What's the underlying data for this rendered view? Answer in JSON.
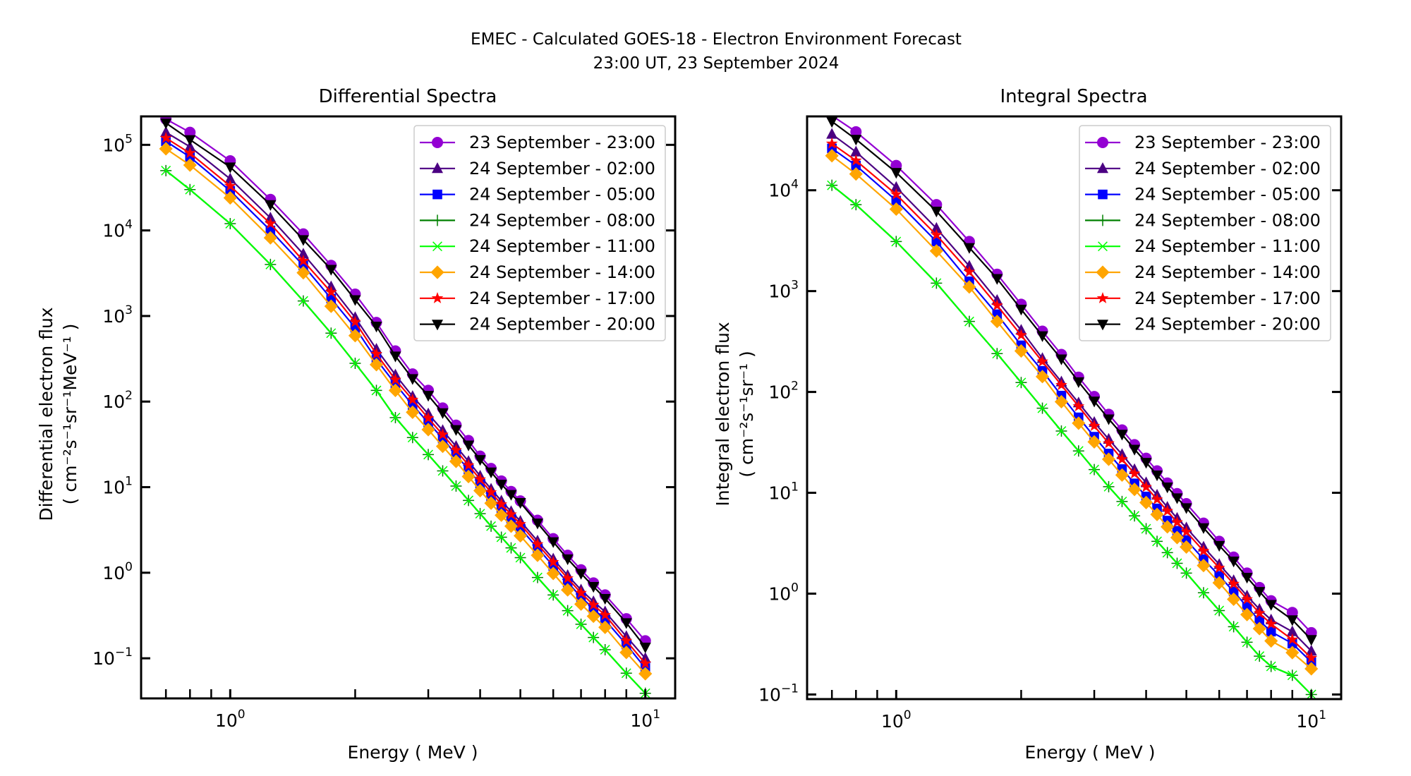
{
  "figure": {
    "title_line1": "EMEC - Calculated GOES-18 - Electron Environment Forecast",
    "title_line2": "23:00 UT, 23 September 2024"
  },
  "chart_data": [
    {
      "type": "line",
      "title": "Differential Spectra",
      "xlabel": "Energy ( MeV )",
      "ylabel_line1": "Differential electron flux",
      "ylabel_line2": "( cm⁻²s⁻¹sr⁻¹MeV⁻¹ )",
      "xscale": "log",
      "yscale": "log",
      "xlim": [
        0.61,
        11.8
      ],
      "ylim": [
        0.034,
        215000
      ],
      "xticks": [
        {
          "value": 1,
          "label": "10",
          "exp": "0"
        },
        {
          "value": 10,
          "label": "10",
          "exp": "1"
        }
      ],
      "yticks": [
        {
          "value": 0.1,
          "label": "10",
          "exp": "−1"
        },
        {
          "value": 1,
          "label": "10",
          "exp": "0"
        },
        {
          "value": 10,
          "label": "10",
          "exp": "1"
        },
        {
          "value": 100,
          "label": "10",
          "exp": "2"
        },
        {
          "value": 1000,
          "label": "10",
          "exp": "3"
        },
        {
          "value": 10000,
          "label": "10",
          "exp": "4"
        },
        {
          "value": 100000,
          "label": "10",
          "exp": "5"
        }
      ],
      "grid": false,
      "legend_position": "top-right",
      "x": [
        0.7,
        0.8,
        1.0,
        1.25,
        1.5,
        1.75,
        2.0,
        2.25,
        2.5,
        2.75,
        3.0,
        3.25,
        3.5,
        3.75,
        4.0,
        4.25,
        4.5,
        4.75,
        5.0,
        5.5,
        6.0,
        6.5,
        7.0,
        7.5,
        8.0,
        9.0,
        10.0
      ],
      "series": [
        {
          "name": "23 September - 23:00",
          "color": "#9400D3",
          "marker": "circle",
          "values": [
            200000,
            140000,
            65000,
            23000,
            9100,
            3900,
            1800,
            840,
            390,
            210,
            135,
            84,
            53,
            35,
            23,
            16.5,
            11.8,
            8.9,
            6.9,
            4.1,
            2.5,
            1.6,
            1.08,
            0.76,
            0.55,
            0.29,
            0.16
          ]
        },
        {
          "name": "24 September - 02:00",
          "color": "#4B0082",
          "marker": "triangle-up",
          "values": [
            140000,
            95000,
            40000,
            14000,
            5300,
            2200,
            960,
            410,
            205,
            115,
            72,
            46,
            30,
            20,
            13.5,
            9.5,
            6.9,
            5.2,
            4.0,
            2.35,
            1.45,
            0.93,
            0.63,
            0.46,
            0.35,
            0.18,
            0.1
          ]
        },
        {
          "name": "24 September - 05:00",
          "color": "#0000FF",
          "marker": "square",
          "values": [
            110000,
            72000,
            29000,
            10000,
            3900,
            1600,
            730,
            310,
            160,
            91,
            57,
            37,
            24,
            16,
            11,
            7.8,
            5.7,
            4.3,
            3.3,
            1.95,
            1.2,
            0.77,
            0.52,
            0.38,
            0.28,
            0.145,
            0.077
          ]
        },
        {
          "name": "24 September - 08:00",
          "color": "#008000",
          "marker": "plus",
          "values": [
            50000,
            30000,
            12000,
            4000,
            1500,
            630,
            280,
            135,
            65,
            38,
            24,
            15.5,
            10.3,
            7.0,
            4.9,
            3.5,
            2.6,
            1.95,
            1.5,
            0.88,
            0.55,
            0.36,
            0.25,
            0.175,
            0.126,
            0.067,
            0.039
          ]
        },
        {
          "name": "24 September - 11:00",
          "color": "#00FF00",
          "marker": "x",
          "values": [
            50000,
            30000,
            12000,
            4000,
            1500,
            630,
            280,
            135,
            65,
            38,
            24,
            15.5,
            10.3,
            7.0,
            4.9,
            3.5,
            2.6,
            1.95,
            1.5,
            0.88,
            0.55,
            0.36,
            0.25,
            0.175,
            0.126,
            0.067,
            0.039
          ]
        },
        {
          "name": "24 September - 14:00",
          "color": "#FFA500",
          "marker": "diamond",
          "values": [
            90000,
            58000,
            24000,
            8200,
            3200,
            1300,
            590,
            270,
            135,
            75,
            47,
            30,
            20,
            13.3,
            9.1,
            6.5,
            4.7,
            3.5,
            2.7,
            1.6,
            0.98,
            0.63,
            0.43,
            0.31,
            0.23,
            0.117,
            0.066
          ]
        },
        {
          "name": "24 September - 17:00",
          "color": "#FF0000",
          "marker": "star",
          "values": [
            120000,
            80000,
            33000,
            12000,
            4400,
            1900,
            850,
            360,
            180,
            105,
            64,
            41,
            27,
            18,
            12.3,
            8.7,
            6.3,
            4.8,
            3.7,
            2.15,
            1.33,
            0.86,
            0.58,
            0.42,
            0.32,
            0.16,
            0.087
          ]
        },
        {
          "name": "24 September - 20:00",
          "color": "#000000",
          "marker": "triangle-down",
          "values": [
            180000,
            115000,
            55000,
            20000,
            7800,
            3500,
            1550,
            760,
            340,
            185,
            118,
            74,
            47,
            31,
            21,
            15,
            10.8,
            8.2,
            6.6,
            3.8,
            2.3,
            1.45,
            0.98,
            0.69,
            0.5,
            0.26,
            0.135
          ]
        }
      ]
    },
    {
      "type": "line",
      "title": "Integral Spectra",
      "xlabel": "Energy ( MeV )",
      "ylabel_line1": "Integral electron flux",
      "ylabel_line2": "( cm⁻²s⁻¹sr⁻¹ )",
      "xscale": "log",
      "yscale": "log",
      "xlim": [
        0.61,
        11.8
      ],
      "ylim": [
        0.09,
        54000
      ],
      "xticks": [
        {
          "value": 1,
          "label": "10",
          "exp": "0"
        },
        {
          "value": 10,
          "label": "10",
          "exp": "1"
        }
      ],
      "yticks": [
        {
          "value": 0.1,
          "label": "10",
          "exp": "−1"
        },
        {
          "value": 1,
          "label": "10",
          "exp": "0"
        },
        {
          "value": 10,
          "label": "10",
          "exp": "1"
        },
        {
          "value": 100,
          "label": "10",
          "exp": "2"
        },
        {
          "value": 1000,
          "label": "10",
          "exp": "3"
        },
        {
          "value": 10000,
          "label": "10",
          "exp": "4"
        }
      ],
      "grid": false,
      "legend_position": "top-right",
      "x": [
        0.7,
        0.8,
        1.0,
        1.25,
        1.5,
        1.75,
        2.0,
        2.25,
        2.5,
        2.75,
        3.0,
        3.25,
        3.5,
        3.75,
        4.0,
        4.25,
        4.5,
        4.75,
        5.0,
        5.5,
        6.0,
        6.5,
        7.0,
        7.5,
        8.0,
        9.0,
        10.0
      ],
      "series": [
        {
          "name": "23 September - 23:00",
          "color": "#9400D3",
          "marker": "circle",
          "values": [
            55000,
            38000,
            17600,
            7200,
            3100,
            1470,
            740,
            400,
            235,
            140,
            90,
            60,
            42,
            30,
            22,
            16.5,
            12.5,
            9.8,
            7.8,
            5.0,
            3.3,
            2.3,
            1.6,
            1.15,
            0.85,
            0.65,
            0.41
          ]
        },
        {
          "name": "24 September - 02:00",
          "color": "#4B0082",
          "marker": "triangle-up",
          "values": [
            36000,
            24000,
            10700,
            4200,
            1770,
            810,
            410,
            215,
            126,
            78,
            50,
            34,
            24,
            17,
            12.6,
            9.5,
            7.2,
            5.6,
            4.5,
            2.9,
            1.95,
            1.35,
            0.95,
            0.7,
            0.55,
            0.42,
            0.27
          ]
        },
        {
          "name": "24 September - 05:00",
          "color": "#0000FF",
          "marker": "square",
          "values": [
            26000,
            17600,
            7900,
            3100,
            1250,
            590,
            290,
            162,
            92,
            56,
            36,
            24.5,
            17.2,
            12.4,
            9.2,
            7.0,
            5.3,
            4.2,
            3.4,
            2.2,
            1.5,
            1.05,
            0.74,
            0.54,
            0.42,
            0.32,
            0.21
          ]
        },
        {
          "name": "24 September - 08:00",
          "color": "#008000",
          "marker": "plus",
          "values": [
            11200,
            7200,
            3100,
            1200,
            500,
            240,
            124,
            69,
            41,
            26,
            17,
            11.5,
            8.2,
            5.9,
            4.4,
            3.3,
            2.55,
            2.0,
            1.6,
            1.02,
            0.68,
            0.47,
            0.33,
            0.24,
            0.19,
            0.155,
            0.1
          ]
        },
        {
          "name": "24 September - 11:00",
          "color": "#00FF00",
          "marker": "x",
          "values": [
            11200,
            7200,
            3100,
            1200,
            500,
            240,
            124,
            69,
            41,
            26,
            17,
            11.5,
            8.2,
            5.9,
            4.4,
            3.3,
            2.55,
            2.0,
            1.6,
            1.02,
            0.68,
            0.47,
            0.33,
            0.24,
            0.19,
            0.155,
            0.1
          ]
        },
        {
          "name": "24 September - 14:00",
          "color": "#FFA500",
          "marker": "diamond",
          "values": [
            22000,
            14500,
            6500,
            2500,
            1100,
            500,
            255,
            142,
            80,
            49,
            32,
            21.5,
            15,
            10.8,
            8.0,
            6.1,
            4.6,
            3.6,
            2.9,
            1.9,
            1.28,
            0.88,
            0.62,
            0.45,
            0.34,
            0.26,
            0.18
          ]
        },
        {
          "name": "24 September - 17:00",
          "color": "#FF0000",
          "marker": "star",
          "values": [
            29000,
            19700,
            9100,
            3600,
            1550,
            720,
            365,
            200,
            117,
            72,
            46,
            31,
            21.5,
            15.5,
            11.4,
            8.6,
            6.6,
            5.1,
            4.1,
            2.65,
            1.8,
            1.25,
            0.88,
            0.64,
            0.5,
            0.35,
            0.23
          ]
        },
        {
          "name": "24 September - 20:00",
          "color": "#000000",
          "marker": "triangle-down",
          "values": [
            48000,
            32000,
            15000,
            6200,
            2700,
            1330,
            660,
            360,
            212,
            126,
            81,
            54,
            38,
            27,
            20,
            15,
            11.4,
            8.9,
            7.1,
            4.5,
            3.0,
            2.1,
            1.45,
            1.05,
            0.78,
            0.55,
            0.35
          ]
        }
      ]
    }
  ]
}
